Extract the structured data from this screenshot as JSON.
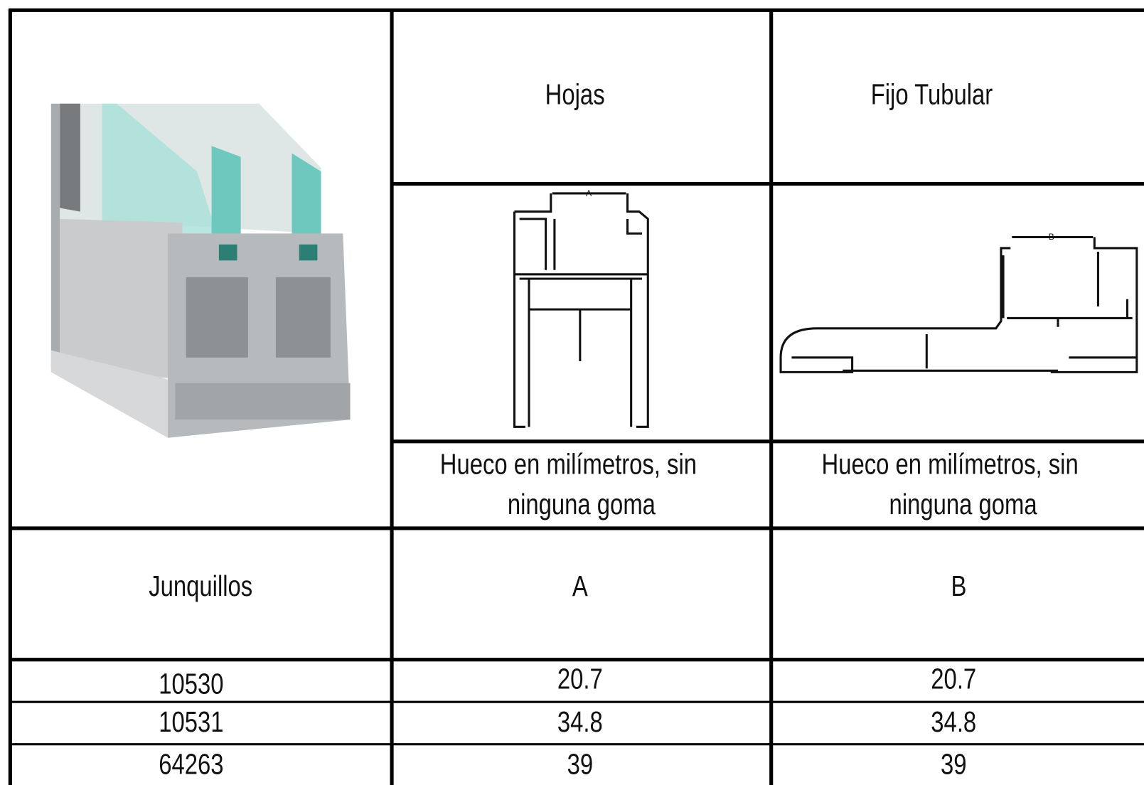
{
  "header": {
    "col1": "Hojas",
    "col2": "Fijo Tubular"
  },
  "drawings": {
    "a_label": "A",
    "b_label": "B"
  },
  "notes": [
    "Hueco en milímetros, sin",
    "ninguna goma",
    "Hueco en milímetros, sin",
    "ninguna goma"
  ],
  "table": {
    "header": [
      "Junquillos",
      "A",
      "B"
    ],
    "rows": [
      [
        "10530",
        "20.7",
        "20.7"
      ],
      [
        "10531",
        "34.8",
        "34.8"
      ],
      [
        "64263",
        "39",
        "39"
      ]
    ]
  }
}
